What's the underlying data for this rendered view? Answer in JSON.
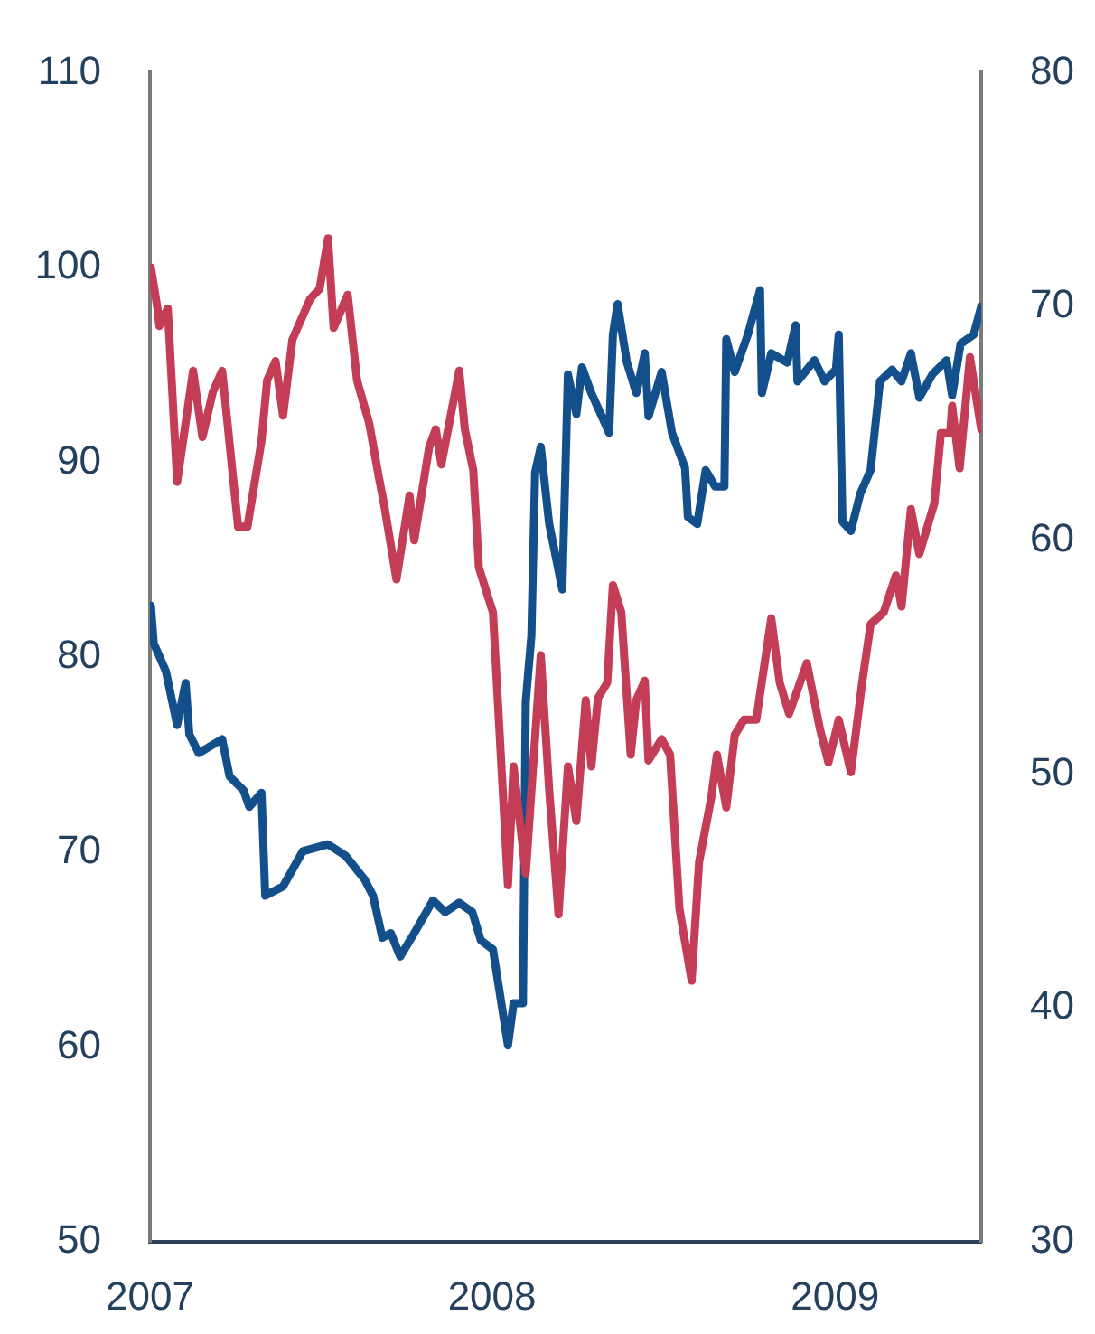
{
  "chart_data": {
    "type": "line",
    "xlim": [
      "2007-01-01",
      "2009-06-06"
    ],
    "xticks": [
      "2007",
      "2008",
      "2009"
    ],
    "ylim": [
      50,
      110
    ],
    "yticks": [
      50,
      60,
      70,
      80,
      90,
      100,
      110
    ],
    "y2lim": [
      30,
      80
    ],
    "y2ticks": [
      30,
      40,
      50,
      60,
      70,
      80
    ],
    "grid": false,
    "legend": false,
    "series": [
      {
        "color": "#c43d57",
        "x": [
          "2007-01-02",
          "2007-01-09",
          "2007-01-11",
          "2007-01-20",
          "2007-01-30",
          "2007-02-08",
          "2007-02-16",
          "2007-02-26",
          "2007-03-09",
          "2007-03-19",
          "2007-04-05",
          "2007-04-15",
          "2007-04-30",
          "2007-05-06",
          "2007-05-15",
          "2007-05-23",
          "2007-06-02",
          "2007-06-21",
          "2007-07-01",
          "2007-07-10",
          "2007-07-16",
          "2007-07-31",
          "2007-08-10",
          "2007-08-23",
          "2007-09-02",
          "2007-09-08",
          "2007-09-21",
          "2007-10-05",
          "2007-10-10",
          "2007-10-26",
          "2007-11-02",
          "2007-11-08",
          "2007-11-27",
          "2007-12-03",
          "2007-12-12",
          "2007-12-18",
          "2008-01-02",
          "2008-01-18",
          "2008-01-24",
          "2008-02-06",
          "2008-02-22",
          "2008-03-02",
          "2008-03-12",
          "2008-03-22",
          "2008-03-31",
          "2008-04-10",
          "2008-04-16",
          "2008-04-23",
          "2008-05-03",
          "2008-05-09",
          "2008-05-18",
          "2008-05-28",
          "2008-06-03",
          "2008-06-12",
          "2008-06-16",
          "2008-06-30",
          "2008-07-09",
          "2008-07-19",
          "2008-08-01",
          "2008-08-09",
          "2008-08-22",
          "2008-08-28",
          "2008-09-07",
          "2008-09-16",
          "2008-09-26",
          "2008-10-09",
          "2008-10-25",
          "2008-11-03",
          "2008-11-13",
          "2008-12-02",
          "2008-12-16",
          "2008-12-25",
          "2009-01-05",
          "2009-01-18",
          "2009-01-30",
          "2009-02-08",
          "2009-02-22",
          "2009-03-07",
          "2009-03-13",
          "2009-03-23",
          "2009-04-01",
          "2009-04-17",
          "2009-04-24",
          "2009-05-04",
          "2009-05-06",
          "2009-05-14",
          "2009-05-25",
          "2009-06-06"
        ],
        "values": [
          100,
          97.9,
          97,
          97.9,
          89,
          92,
          94.7,
          91.3,
          93.6,
          94.7,
          86.7,
          86.7,
          91.1,
          94.2,
          95.2,
          92.4,
          96.3,
          98.4,
          98.9,
          101.5,
          96.9,
          98.6,
          94.2,
          92,
          89.3,
          87.8,
          84,
          88.3,
          86,
          90.8,
          91.7,
          89.9,
          94.7,
          91.7,
          89.6,
          84.6,
          82.3,
          68.3,
          74.4,
          68.9,
          80.1,
          73.2,
          66.8,
          74.4,
          71.6,
          77.8,
          74.4,
          77.9,
          78.7,
          83.7,
          82.3,
          75,
          77.8,
          78.8,
          74.7,
          75.8,
          75,
          67.1,
          63.4,
          69.5,
          72.8,
          75,
          72.3,
          76,
          76.8,
          76.8,
          82,
          78.7,
          77.1,
          79.7,
          76.3,
          74.6,
          76.8,
          74.1,
          78.7,
          81.7,
          82.3,
          84.2,
          82.6,
          87.6,
          85.3,
          87.9,
          91.5,
          91.5,
          92.9,
          89.7,
          95.4,
          91.7
        ]
      },
      {
        "color": "#134f8b",
        "axis": "y2",
        "x": [
          "2007-01-02",
          "2007-01-05",
          "2007-01-18",
          "2007-01-30",
          "2007-02-08",
          "2007-02-12",
          "2007-02-22",
          "2007-03-19",
          "2007-03-27",
          "2007-04-11",
          "2007-04-17",
          "2007-04-30",
          "2007-05-04",
          "2007-05-23",
          "2007-06-13",
          "2007-07-10",
          "2007-07-29",
          "2007-08-18",
          "2007-08-27",
          "2007-09-06",
          "2007-09-15",
          "2007-09-25",
          "2007-10-10",
          "2007-10-30",
          "2007-11-12",
          "2007-11-27",
          "2007-12-11",
          "2007-12-20",
          "2008-01-02",
          "2008-01-18",
          "2008-01-24",
          "2008-02-03",
          "2008-02-06",
          "2008-02-12",
          "2008-02-16",
          "2008-02-22",
          "2008-03-02",
          "2008-03-16",
          "2008-03-22",
          "2008-03-31",
          "2008-04-06",
          "2008-04-16",
          "2008-05-05",
          "2008-05-09",
          "2008-05-14",
          "2008-05-24",
          "2008-06-03",
          "2008-06-12",
          "2008-06-16",
          "2008-06-30",
          "2008-07-11",
          "2008-07-25",
          "2008-07-28",
          "2008-08-07",
          "2008-08-16",
          "2008-08-26",
          "2008-09-05",
          "2008-09-07",
          "2008-09-16",
          "2008-09-30",
          "2008-10-13",
          "2008-10-15",
          "2008-10-25",
          "2008-11-11",
          "2008-11-20",
          "2008-11-22",
          "2008-12-10",
          "2008-12-21",
          "2009-01-02",
          "2009-01-05",
          "2009-01-09",
          "2009-01-18",
          "2009-01-28",
          "2009-02-08",
          "2009-02-18",
          "2009-03-03",
          "2009-03-13",
          "2009-03-23",
          "2009-04-01",
          "2009-04-15",
          "2009-04-30",
          "2009-05-06",
          "2009-05-15",
          "2009-05-29",
          "2009-06-06"
        ],
        "values": [
          57.2,
          55.6,
          54.4,
          52.1,
          53.9,
          51.7,
          50.9,
          51.5,
          49.9,
          49.3,
          48.6,
          49.2,
          44.8,
          45.2,
          46.7,
          47,
          46.5,
          45.5,
          44.8,
          43,
          43.2,
          42.2,
          43.2,
          44.6,
          44.1,
          44.5,
          44.1,
          42.9,
          42.5,
          38.4,
          40.2,
          40.2,
          53.1,
          55.9,
          62.9,
          64,
          60.7,
          57.9,
          67.1,
          65.4,
          67.4,
          66.3,
          64.6,
          68.8,
          70.1,
          67.6,
          66.3,
          68,
          65.3,
          67.2,
          64.6,
          63.1,
          61,
          60.7,
          63,
          62.3,
          62.3,
          68.6,
          67.2,
          68.8,
          70.7,
          66.3,
          68,
          67.6,
          69.2,
          66.8,
          67.7,
          66.8,
          67.3,
          68.8,
          60.8,
          60.4,
          62,
          63,
          66.8,
          67.3,
          66.8,
          68,
          66.1,
          67.1,
          67.7,
          66.2,
          68.4,
          68.8,
          70
        ]
      }
    ]
  }
}
